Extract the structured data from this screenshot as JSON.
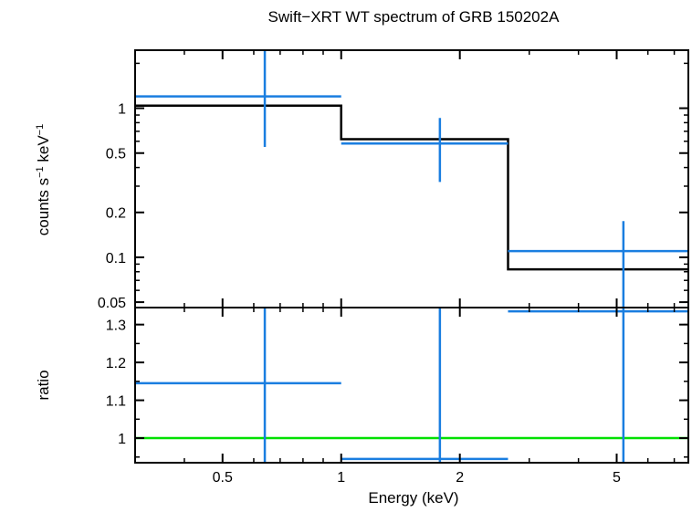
{
  "chart_data": {
    "type": "line",
    "title": "Swift−XRT WT spectrum of GRB 150202A",
    "xlabel": "Energy (keV)",
    "x_scale": "log",
    "xlim": [
      0.3,
      7.6
    ],
    "x_ticks": [
      {
        "value": 0.5,
        "label": "0.5"
      },
      {
        "value": 1,
        "label": "1"
      },
      {
        "value": 2,
        "label": "2"
      },
      {
        "value": 5,
        "label": "5"
      }
    ],
    "panels": [
      {
        "id": "spectrum",
        "ylabel_main": "counts s",
        "ylabel_sup1": "−1",
        "ylabel_mid": " keV",
        "ylabel_sup2": "−1",
        "y_scale": "log",
        "ylim": [
          0.046,
          2.45
        ],
        "y_ticks": [
          {
            "value": 0.05,
            "label": "0.05"
          },
          {
            "value": 0.1,
            "label": "0.1"
          },
          {
            "value": 0.2,
            "label": "0.2"
          },
          {
            "value": 0.5,
            "label": "0.5"
          },
          {
            "value": 1,
            "label": "1"
          }
        ],
        "data_points": [
          {
            "x": 0.64,
            "xlo": 0.3,
            "xhi": 1.0,
            "y": 1.2,
            "ylo": 0.55,
            "yhi": 2.45
          },
          {
            "x": 1.78,
            "xlo": 1.0,
            "xhi": 2.65,
            "y": 0.58,
            "ylo": 0.32,
            "yhi": 0.86
          },
          {
            "x": 5.2,
            "xlo": 2.65,
            "xhi": 7.6,
            "y": 0.11,
            "ylo": 0.046,
            "yhi": 0.175
          }
        ],
        "model_steps": [
          {
            "xlo": 0.3,
            "xhi": 1.0,
            "y": 1.04
          },
          {
            "xlo": 1.0,
            "xhi": 2.65,
            "y": 0.62
          },
          {
            "xlo": 2.65,
            "xhi": 7.6,
            "y": 0.083
          }
        ]
      },
      {
        "id": "ratio",
        "ylabel_main": "ratio",
        "y_scale": "linear",
        "ylim": [
          0.935,
          1.345
        ],
        "y_ticks": [
          {
            "value": 1,
            "label": "1"
          },
          {
            "value": 1.1,
            "label": "1.1"
          },
          {
            "value": 1.2,
            "label": "1.2"
          },
          {
            "value": 1.3,
            "label": "1.3"
          }
        ],
        "data_points": [
          {
            "x": 0.64,
            "xlo": 0.3,
            "xhi": 1.0,
            "y": 1.145,
            "ylo": 0.935,
            "yhi": 1.345
          },
          {
            "x": 1.78,
            "xlo": 1.0,
            "xhi": 2.65,
            "y": 0.945,
            "ylo": 0.935,
            "yhi": 1.345
          },
          {
            "x": 5.2,
            "xlo": 2.65,
            "xhi": 7.6,
            "y": 1.335,
            "ylo": 0.935,
            "yhi": 1.345
          }
        ],
        "reference_line": {
          "y": 1
        }
      }
    ],
    "colors": {
      "data": "#1a7ee0",
      "model": "#000000",
      "reference": "#00e000",
      "frame": "#000000"
    }
  }
}
